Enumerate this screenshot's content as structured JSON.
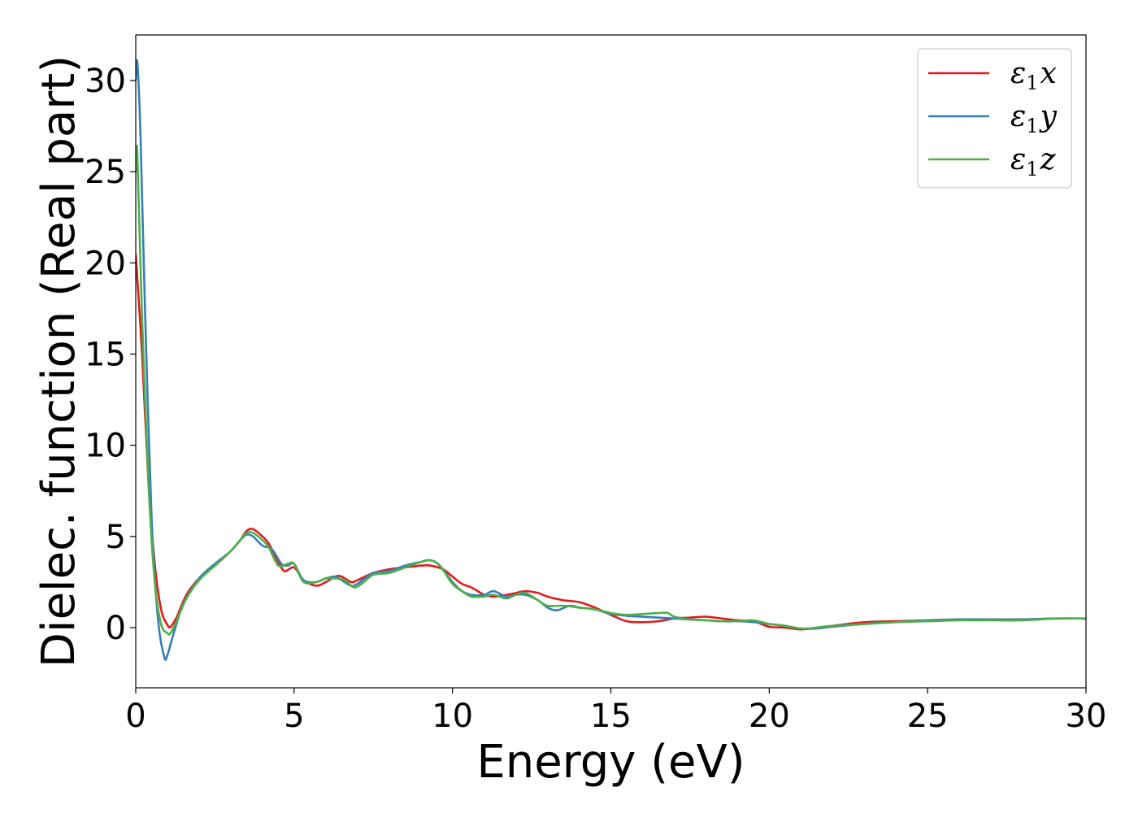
{
  "chart_data": {
    "type": "line",
    "xlabel": "Energy (eV)",
    "ylabel": "Dielec. function (Real part)",
    "xlim": [
      0,
      30
    ],
    "ylim": [
      -3.3,
      32.5
    ],
    "xticks": [
      0,
      5,
      10,
      15,
      20,
      25,
      30
    ],
    "yticks": [
      0,
      5,
      10,
      15,
      20,
      25,
      30
    ],
    "grid": false,
    "legend_position": "top-right",
    "series": [
      {
        "name": "ε1x",
        "legend_base": "ε",
        "legend_sub": "1",
        "legend_var": "x",
        "color": "#e41a1c",
        "x": [
          0,
          0.2,
          0.4,
          0.6,
          0.8,
          1.0,
          1.1,
          1.3,
          1.6,
          2.0,
          2.5,
          3.0,
          3.3,
          3.5,
          3.7,
          4.0,
          4.2,
          4.5,
          4.7,
          5.0,
          5.3,
          5.7,
          6.0,
          6.3,
          6.5,
          6.8,
          7.0,
          7.5,
          8.0,
          8.5,
          9.0,
          9.3,
          9.7,
          10.0,
          10.3,
          10.6,
          11.0,
          11.3,
          11.7,
          12.0,
          12.3,
          12.7,
          13.0,
          13.5,
          14.0,
          14.5,
          15.0,
          15.5,
          16.0,
          16.5,
          17.0,
          17.5,
          18.0,
          18.5,
          19.0,
          19.5,
          20.0,
          20.5,
          21.0,
          21.5,
          22.0,
          23.0,
          24.0,
          25.0,
          26.0,
          27.0,
          28.0,
          29.0,
          30.0
        ],
        "y": [
          20.5,
          15.0,
          8.0,
          3.5,
          1.0,
          0.15,
          0.05,
          0.6,
          1.8,
          2.7,
          3.4,
          4.2,
          4.8,
          5.3,
          5.4,
          5.0,
          4.6,
          3.6,
          3.1,
          3.3,
          2.6,
          2.3,
          2.5,
          2.8,
          2.8,
          2.5,
          2.6,
          3.0,
          3.2,
          3.3,
          3.4,
          3.4,
          3.2,
          2.8,
          2.4,
          2.2,
          1.8,
          1.7,
          1.8,
          1.9,
          2.0,
          1.9,
          1.7,
          1.5,
          1.4,
          1.1,
          0.7,
          0.35,
          0.3,
          0.35,
          0.5,
          0.55,
          0.6,
          0.5,
          0.4,
          0.35,
          0.05,
          0.0,
          -0.1,
          0.0,
          0.1,
          0.3,
          0.35,
          0.4,
          0.45,
          0.45,
          0.45,
          0.5,
          0.5
        ]
      },
      {
        "name": "ε1y",
        "legend_base": "ε",
        "legend_sub": "1",
        "legend_var": "y",
        "color": "#377eb8",
        "x": [
          0,
          0.05,
          0.15,
          0.3,
          0.5,
          0.7,
          0.9,
          1.0,
          1.2,
          1.5,
          2.0,
          2.5,
          3.0,
          3.3,
          3.5,
          3.7,
          4.0,
          4.3,
          4.6,
          4.8,
          5.0,
          5.3,
          5.7,
          6.0,
          6.3,
          6.5,
          6.8,
          7.0,
          7.5,
          8.0,
          8.5,
          9.0,
          9.3,
          9.6,
          10.0,
          10.3,
          10.6,
          11.0,
          11.3,
          11.7,
          12.0,
          12.3,
          12.7,
          13.0,
          13.3,
          13.7,
          14.0,
          14.5,
          15.0,
          15.5,
          16.0,
          16.5,
          17.0,
          17.5,
          18.0,
          18.5,
          19.0,
          19.5,
          20.0,
          20.5,
          21.0,
          21.5,
          22.0,
          23.0,
          24.0,
          25.0,
          26.0,
          27.0,
          28.0,
          29.0,
          30.0
        ],
        "y": [
          30.0,
          31.0,
          27.0,
          17.0,
          6.0,
          0.5,
          -1.6,
          -1.5,
          -0.3,
          1.3,
          2.7,
          3.5,
          4.2,
          4.8,
          5.1,
          5.0,
          4.5,
          4.3,
          3.5,
          3.4,
          3.5,
          2.6,
          2.5,
          2.7,
          2.8,
          2.6,
          2.3,
          2.4,
          3.0,
          3.1,
          3.4,
          3.6,
          3.7,
          3.4,
          2.5,
          2.0,
          1.8,
          1.8,
          2.0,
          1.7,
          1.8,
          1.8,
          1.5,
          1.1,
          0.95,
          1.2,
          1.1,
          1.0,
          0.75,
          0.65,
          0.6,
          0.55,
          0.5,
          0.45,
          0.4,
          0.35,
          0.35,
          0.3,
          0.2,
          0.1,
          -0.05,
          -0.05,
          0.05,
          0.2,
          0.3,
          0.4,
          0.45,
          0.45,
          0.45,
          0.5,
          0.5
        ]
      },
      {
        "name": "ε1z",
        "legend_base": "ε",
        "legend_sub": "1",
        "legend_var": "z",
        "color": "#4daf4a",
        "x": [
          0,
          0.05,
          0.2,
          0.4,
          0.6,
          0.8,
          1.0,
          1.1,
          1.3,
          1.6,
          2.0,
          2.5,
          3.0,
          3.3,
          3.5,
          3.7,
          4.0,
          4.2,
          4.5,
          4.8,
          5.0,
          5.3,
          5.7,
          6.0,
          6.3,
          6.6,
          6.9,
          7.2,
          7.5,
          8.0,
          8.5,
          9.0,
          9.3,
          9.6,
          10.0,
          10.3,
          10.6,
          11.0,
          11.3,
          11.7,
          12.0,
          12.3,
          12.7,
          13.0,
          13.5,
          14.0,
          14.5,
          15.0,
          15.5,
          16.0,
          16.5,
          16.8,
          17.0,
          17.5,
          18.0,
          18.5,
          19.0,
          19.5,
          20.0,
          20.5,
          21.0,
          21.5,
          22.0,
          23.0,
          24.0,
          25.0,
          26.0,
          27.0,
          28.0,
          29.0,
          30.0
        ],
        "y": [
          25.0,
          26.0,
          17.0,
          8.0,
          2.5,
          0.2,
          -0.3,
          -0.3,
          0.4,
          1.6,
          2.6,
          3.4,
          4.2,
          4.8,
          5.2,
          5.2,
          4.8,
          4.4,
          3.4,
          3.5,
          3.5,
          2.5,
          2.5,
          2.7,
          2.7,
          2.6,
          2.2,
          2.5,
          2.9,
          3.0,
          3.3,
          3.6,
          3.7,
          3.4,
          2.4,
          2.0,
          1.7,
          1.7,
          1.8,
          1.6,
          1.8,
          1.9,
          1.5,
          1.2,
          1.2,
          1.1,
          1.0,
          0.8,
          0.7,
          0.75,
          0.8,
          0.8,
          0.6,
          0.45,
          0.4,
          0.35,
          0.35,
          0.4,
          0.2,
          0.1,
          -0.05,
          0.0,
          0.1,
          0.2,
          0.3,
          0.35,
          0.4,
          0.4,
          0.4,
          0.5,
          0.5
        ]
      }
    ]
  }
}
